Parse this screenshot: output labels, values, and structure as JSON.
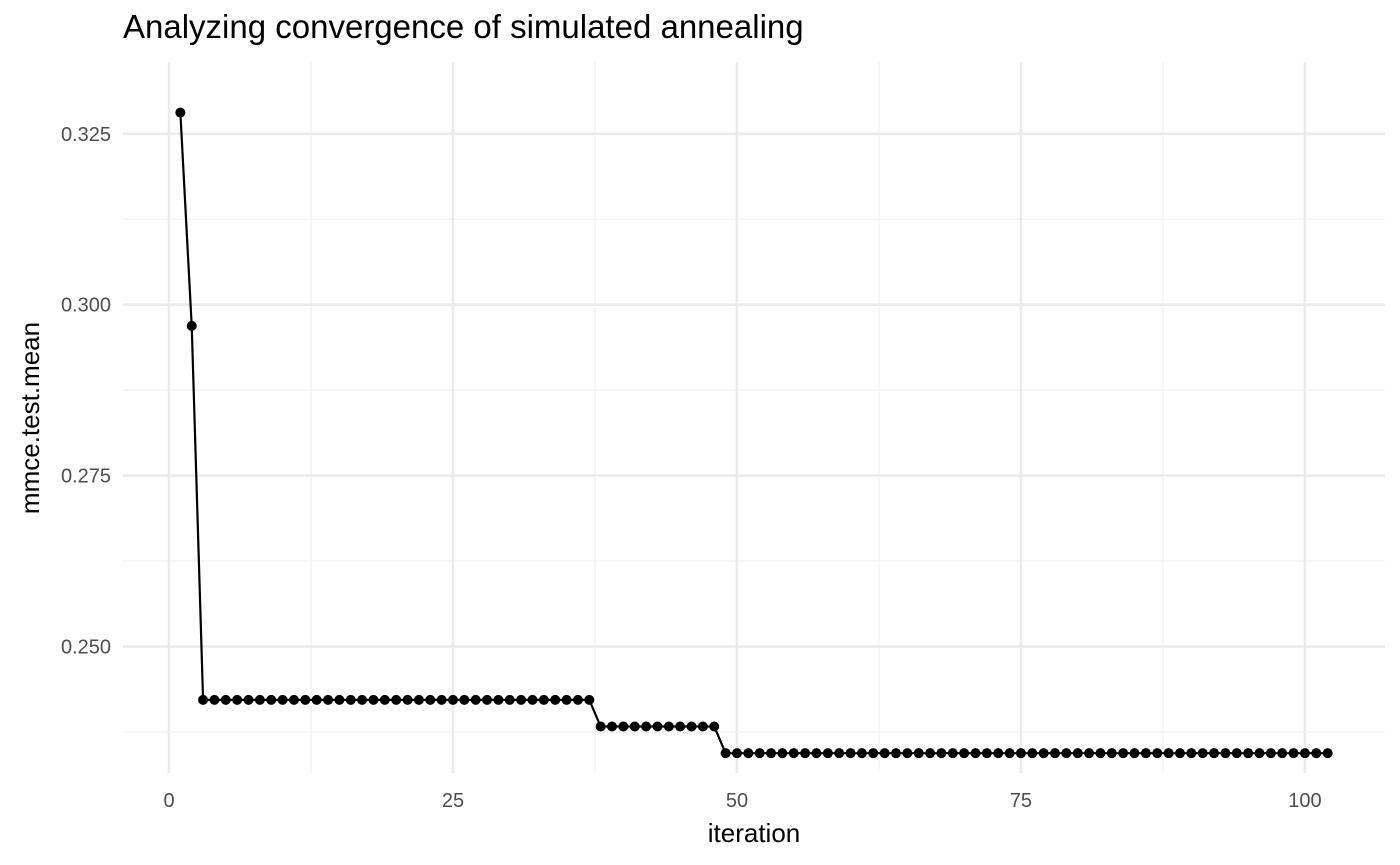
{
  "chart_data": {
    "type": "line",
    "title": "Analyzing convergence of simulated annealing",
    "xlabel": "iteration",
    "ylabel": "mmce.test.mean",
    "xlim": [
      -4.05,
      107.05
    ],
    "ylim": [
      0.2315,
      0.3355
    ],
    "x_ticks": [
      0,
      25,
      50,
      75,
      100
    ],
    "x_tick_labels": [
      "0",
      "25",
      "50",
      "75",
      "100"
    ],
    "y_ticks": [
      0.25,
      0.275,
      0.3,
      0.325
    ],
    "y_tick_labels": [
      "0.250",
      "0.275",
      "0.300",
      "0.325"
    ],
    "grid": true,
    "legend": "none",
    "series": [
      {
        "x": [
          1,
          2,
          3,
          4,
          5,
          6,
          7,
          8,
          9,
          10,
          11,
          12,
          13,
          14,
          15,
          16,
          17,
          18,
          19,
          20,
          21,
          22,
          23,
          24,
          25,
          26,
          27,
          28,
          29,
          30,
          31,
          32,
          33,
          34,
          35,
          36,
          37,
          38,
          39,
          40,
          41,
          42,
          43,
          44,
          45,
          46,
          47,
          48,
          49,
          50,
          51,
          52,
          53,
          54,
          55,
          56,
          57,
          58,
          59,
          60,
          61,
          62,
          63,
          64,
          65,
          66,
          67,
          68,
          69,
          70,
          71,
          72,
          73,
          74,
          75,
          76,
          77,
          78,
          79,
          80,
          81,
          82,
          83,
          84,
          85,
          86,
          87,
          88,
          89,
          90,
          91,
          92,
          93,
          94,
          95,
          96,
          97,
          98,
          99,
          100,
          101,
          102
        ],
        "y": [
          0.3281,
          0.2969,
          0.2422,
          0.2422,
          0.2422,
          0.2422,
          0.2422,
          0.2422,
          0.2422,
          0.2422,
          0.2422,
          0.2422,
          0.2422,
          0.2422,
          0.2422,
          0.2422,
          0.2422,
          0.2422,
          0.2422,
          0.2422,
          0.2422,
          0.2422,
          0.2422,
          0.2422,
          0.2422,
          0.2422,
          0.2422,
          0.2422,
          0.2422,
          0.2422,
          0.2422,
          0.2422,
          0.2422,
          0.2422,
          0.2422,
          0.2422,
          0.2422,
          0.2383,
          0.2383,
          0.2383,
          0.2383,
          0.2383,
          0.2383,
          0.2383,
          0.2383,
          0.2383,
          0.2383,
          0.2383,
          0.2344,
          0.2344,
          0.2344,
          0.2344,
          0.2344,
          0.2344,
          0.2344,
          0.2344,
          0.2344,
          0.2344,
          0.2344,
          0.2344,
          0.2344,
          0.2344,
          0.2344,
          0.2344,
          0.2344,
          0.2344,
          0.2344,
          0.2344,
          0.2344,
          0.2344,
          0.2344,
          0.2344,
          0.2344,
          0.2344,
          0.2344,
          0.2344,
          0.2344,
          0.2344,
          0.2344,
          0.2344,
          0.2344,
          0.2344,
          0.2344,
          0.2344,
          0.2344,
          0.2344,
          0.2344,
          0.2344,
          0.2344,
          0.2344,
          0.2344,
          0.2344,
          0.2344,
          0.2344,
          0.2344,
          0.2344,
          0.2344,
          0.2344,
          0.2344,
          0.2344,
          0.2344,
          0.2344
        ]
      }
    ]
  }
}
